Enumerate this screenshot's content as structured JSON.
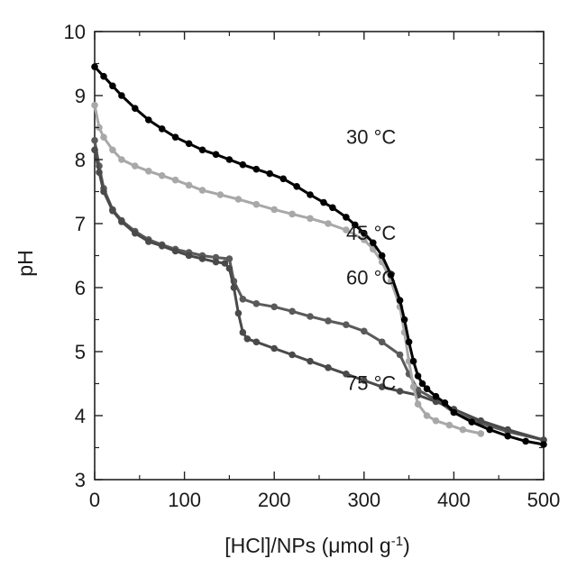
{
  "chart_data": {
    "type": "line",
    "title": "",
    "xlabel": "[HCl]/NPs (μmol g",
    "xlabel_sup": "-1",
    "xlabel_close": ")",
    "ylabel": "pH",
    "xlim": [
      0,
      500
    ],
    "ylim": [
      3,
      10
    ],
    "xticks": [
      "0",
      "100",
      "200",
      "300",
      "400",
      "500"
    ],
    "yticks": [
      "3",
      "4",
      "5",
      "6",
      "7",
      "8",
      "9",
      "10"
    ],
    "grid": false,
    "legend": "none",
    "annotations": [
      {
        "text": "30 °C",
        "x": 250,
        "y": 8.25
      },
      {
        "text": "45 °C",
        "x": 250,
        "y": 6.75
      },
      {
        "text": "60 °C",
        "x": 250,
        "y": 6.05
      },
      {
        "text": "75 °C",
        "x": 250,
        "y": 4.4
      }
    ],
    "series": [
      {
        "label": "30 °C",
        "color": "#000000",
        "markers": true,
        "x": [
          0,
          10,
          20,
          30,
          45,
          60,
          75,
          90,
          105,
          120,
          135,
          150,
          165,
          180,
          195,
          210,
          225,
          240,
          255,
          265,
          280,
          290,
          300,
          310,
          320,
          330,
          340,
          345,
          350,
          355,
          360,
          365,
          370,
          380,
          390,
          400,
          420,
          440,
          460,
          480,
          500
        ],
        "y": [
          9.45,
          9.3,
          9.15,
          9.0,
          8.8,
          8.62,
          8.48,
          8.35,
          8.25,
          8.15,
          8.08,
          8.0,
          7.92,
          7.85,
          7.78,
          7.7,
          7.58,
          7.45,
          7.33,
          7.25,
          7.1,
          6.98,
          6.85,
          6.7,
          6.5,
          6.2,
          5.8,
          5.5,
          5.15,
          4.85,
          4.62,
          4.5,
          4.42,
          4.3,
          4.2,
          4.05,
          3.9,
          3.78,
          3.68,
          3.6,
          3.55
        ]
      },
      {
        "label": "45 °C",
        "color": "#a8a8a8",
        "markers": true,
        "x": [
          0,
          5,
          10,
          20,
          30,
          45,
          60,
          75,
          90,
          105,
          120,
          140,
          160,
          180,
          200,
          220,
          240,
          260,
          280,
          300,
          310,
          320,
          330,
          340,
          345,
          350,
          355,
          360,
          370,
          380,
          395,
          410,
          430
        ],
        "y": [
          8.85,
          8.5,
          8.35,
          8.15,
          8.0,
          7.9,
          7.82,
          7.75,
          7.68,
          7.6,
          7.52,
          7.45,
          7.38,
          7.3,
          7.22,
          7.15,
          7.08,
          7.0,
          6.9,
          6.75,
          6.6,
          6.4,
          6.1,
          5.7,
          5.3,
          4.85,
          4.45,
          4.18,
          4.0,
          3.92,
          3.85,
          3.78,
          3.72
        ]
      },
      {
        "label": "60 °C",
        "color": "#5a5a5a",
        "markers": true,
        "x": [
          0,
          5,
          10,
          20,
          30,
          45,
          60,
          75,
          90,
          105,
          120,
          135,
          150,
          155,
          165,
          180,
          200,
          220,
          240,
          260,
          280,
          300,
          320,
          340,
          350,
          360,
          380,
          400,
          430,
          460,
          500
        ],
        "y": [
          8.3,
          7.9,
          7.55,
          7.22,
          7.05,
          6.88,
          6.75,
          6.67,
          6.6,
          6.55,
          6.5,
          6.47,
          6.45,
          6.1,
          5.82,
          5.75,
          5.7,
          5.63,
          5.55,
          5.48,
          5.42,
          5.32,
          5.15,
          4.95,
          4.65,
          4.4,
          4.25,
          4.05,
          3.88,
          3.75,
          3.62
        ]
      },
      {
        "label": "75 °C",
        "color": "#4a4a4a",
        "markers": true,
        "x": [
          0,
          5,
          10,
          20,
          30,
          45,
          60,
          75,
          90,
          105,
          120,
          135,
          145,
          150,
          155,
          160,
          165,
          170,
          180,
          200,
          220,
          240,
          260,
          280,
          300,
          320,
          340,
          360,
          380,
          400,
          430,
          460,
          500
        ],
        "y": [
          8.15,
          7.8,
          7.5,
          7.2,
          7.03,
          6.85,
          6.72,
          6.65,
          6.57,
          6.5,
          6.45,
          6.4,
          6.38,
          6.3,
          6.0,
          5.6,
          5.3,
          5.2,
          5.15,
          5.05,
          4.95,
          4.85,
          4.75,
          4.65,
          4.55,
          4.45,
          4.38,
          4.32,
          4.22,
          4.1,
          3.92,
          3.78,
          3.62
        ]
      }
    ]
  }
}
